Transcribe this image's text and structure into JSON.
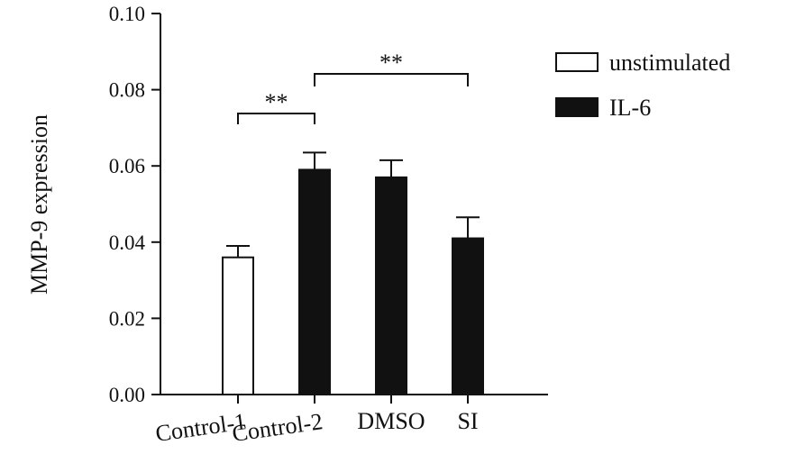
{
  "chart_data": {
    "type": "bar",
    "title": "",
    "xlabel": "",
    "ylabel": "MMP-9 expression",
    "ylim": [
      0,
      0.1
    ],
    "yticks": [
      "0.00",
      "0.02",
      "0.04",
      "0.06",
      "0.08",
      "0.10"
    ],
    "categories": [
      "Control-1",
      "Control-2",
      "DMSO",
      "SI"
    ],
    "bars": [
      {
        "category": "Control-1",
        "series": "unstimulated",
        "value": 0.036,
        "error": 0.003
      },
      {
        "category": "Control-2",
        "series": "IL-6",
        "value": 0.059,
        "error": 0.0045
      },
      {
        "category": "DMSO",
        "series": "IL-6",
        "value": 0.057,
        "error": 0.0045
      },
      {
        "category": "SI",
        "series": "IL-6",
        "value": 0.041,
        "error": 0.0055
      }
    ],
    "series": [
      {
        "name": "unstimulated",
        "color": "#ffffff"
      },
      {
        "name": "IL-6",
        "color": "#111111"
      }
    ],
    "legend": {
      "position": "top-right"
    },
    "grid": false,
    "significance": [
      {
        "from": "Control-1",
        "to": "Control-2",
        "label": "**"
      },
      {
        "from": "Control-2",
        "to": "SI",
        "label": "**"
      }
    ]
  }
}
